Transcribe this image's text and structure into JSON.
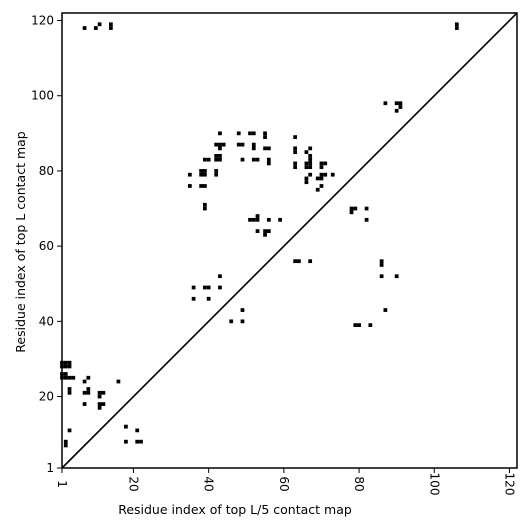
{
  "chart_data": {
    "type": "scatter",
    "title": "",
    "xlabel": "Residue index of top L/5 contact map",
    "ylabel": "Residue index of top L contact map",
    "xlim": [
      1,
      122
    ],
    "ylim": [
      1,
      122
    ],
    "xticks": [
      1,
      20,
      40,
      60,
      80,
      100,
      120
    ],
    "yticks": [
      1,
      20,
      40,
      60,
      80,
      100,
      120
    ],
    "grid": false,
    "diagonal": [
      [
        1,
        1
      ],
      [
        122,
        122
      ]
    ],
    "series": [
      {
        "marker": "square",
        "color": "#000000",
        "points": [
          [
            2,
            7
          ],
          [
            2,
            8
          ],
          [
            3,
            11
          ],
          [
            1,
            25
          ],
          [
            2,
            25
          ],
          [
            3,
            25
          ],
          [
            4,
            25
          ],
          [
            1,
            26
          ],
          [
            2,
            26
          ],
          [
            1,
            28
          ],
          [
            2,
            28
          ],
          [
            3,
            28
          ],
          [
            1,
            29
          ],
          [
            2,
            29
          ],
          [
            3,
            29
          ],
          [
            3,
            21
          ],
          [
            3,
            22
          ],
          [
            7,
            18
          ],
          [
            7,
            21
          ],
          [
            8,
            21
          ],
          [
            8,
            22
          ],
          [
            7,
            24
          ],
          [
            8,
            25
          ],
          [
            11,
            18
          ],
          [
            12,
            18
          ],
          [
            11,
            17
          ],
          [
            11,
            20
          ],
          [
            11,
            21
          ],
          [
            12,
            21
          ],
          [
            16,
            24
          ],
          [
            18,
            8
          ],
          [
            18,
            12
          ],
          [
            21,
            8
          ],
          [
            22,
            8
          ],
          [
            21,
            11
          ],
          [
            7,
            118
          ],
          [
            10,
            118
          ],
          [
            11,
            119
          ],
          [
            14,
            118
          ],
          [
            14,
            119
          ],
          [
            35,
            76
          ],
          [
            35,
            79
          ],
          [
            36,
            46
          ],
          [
            36,
            49
          ],
          [
            38,
            76
          ],
          [
            39,
            76
          ],
          [
            38,
            79
          ],
          [
            39,
            79
          ],
          [
            38,
            80
          ],
          [
            39,
            80
          ],
          [
            39,
            70
          ],
          [
            39,
            71
          ],
          [
            39,
            49
          ],
          [
            40,
            49
          ],
          [
            40,
            46
          ],
          [
            39,
            83
          ],
          [
            40,
            83
          ],
          [
            42,
            79
          ],
          [
            42,
            80
          ],
          [
            42,
            83
          ],
          [
            43,
            83
          ],
          [
            42,
            84
          ],
          [
            43,
            84
          ],
          [
            42,
            87
          ],
          [
            43,
            87
          ],
          [
            44,
            87
          ],
          [
            43,
            86
          ],
          [
            43,
            90
          ],
          [
            43,
            49
          ],
          [
            43,
            52
          ],
          [
            46,
            40
          ],
          [
            48,
            87
          ],
          [
            49,
            87
          ],
          [
            48,
            90
          ],
          [
            49,
            83
          ],
          [
            49,
            40
          ],
          [
            49,
            43
          ],
          [
            51,
            67
          ],
          [
            52,
            67
          ],
          [
            53,
            67
          ],
          [
            53,
            68
          ],
          [
            52,
            83
          ],
          [
            53,
            83
          ],
          [
            52,
            86
          ],
          [
            52,
            87
          ],
          [
            52,
            90
          ],
          [
            51,
            90
          ],
          [
            53,
            64
          ],
          [
            55,
            63
          ],
          [
            55,
            64
          ],
          [
            56,
            64
          ],
          [
            56,
            67
          ],
          [
            56,
            82
          ],
          [
            56,
            83
          ],
          [
            55,
            86
          ],
          [
            56,
            86
          ],
          [
            55,
            89
          ],
          [
            55,
            90
          ],
          [
            59,
            67
          ],
          [
            63,
            56
          ],
          [
            64,
            56
          ],
          [
            63,
            81
          ],
          [
            63,
            82
          ],
          [
            63,
            85
          ],
          [
            63,
            86
          ],
          [
            63,
            89
          ],
          [
            66,
            77
          ],
          [
            66,
            78
          ],
          [
            66,
            81
          ],
          [
            66,
            82
          ],
          [
            66,
            85
          ],
          [
            67,
            79
          ],
          [
            67,
            81
          ],
          [
            67,
            82
          ],
          [
            67,
            83
          ],
          [
            67,
            84
          ],
          [
            67,
            86
          ],
          [
            67,
            56
          ],
          [
            69,
            75
          ],
          [
            70,
            76
          ],
          [
            69,
            78
          ],
          [
            70,
            78
          ],
          [
            70,
            79
          ],
          [
            71,
            79
          ],
          [
            70,
            81
          ],
          [
            70,
            82
          ],
          [
            71,
            82
          ],
          [
            73,
            79
          ],
          [
            78,
            69
          ],
          [
            78,
            70
          ],
          [
            79,
            70
          ],
          [
            79,
            39
          ],
          [
            80,
            39
          ],
          [
            82,
            67
          ],
          [
            82,
            70
          ],
          [
            83,
            39
          ],
          [
            86,
            52
          ],
          [
            86,
            55
          ],
          [
            86,
            56
          ],
          [
            87,
            43
          ],
          [
            87,
            98
          ],
          [
            90,
            52
          ],
          [
            90,
            96
          ],
          [
            90,
            98
          ],
          [
            91,
            97
          ],
          [
            91,
            98
          ],
          [
            106,
            118
          ],
          [
            106,
            119
          ]
        ]
      }
    ]
  }
}
